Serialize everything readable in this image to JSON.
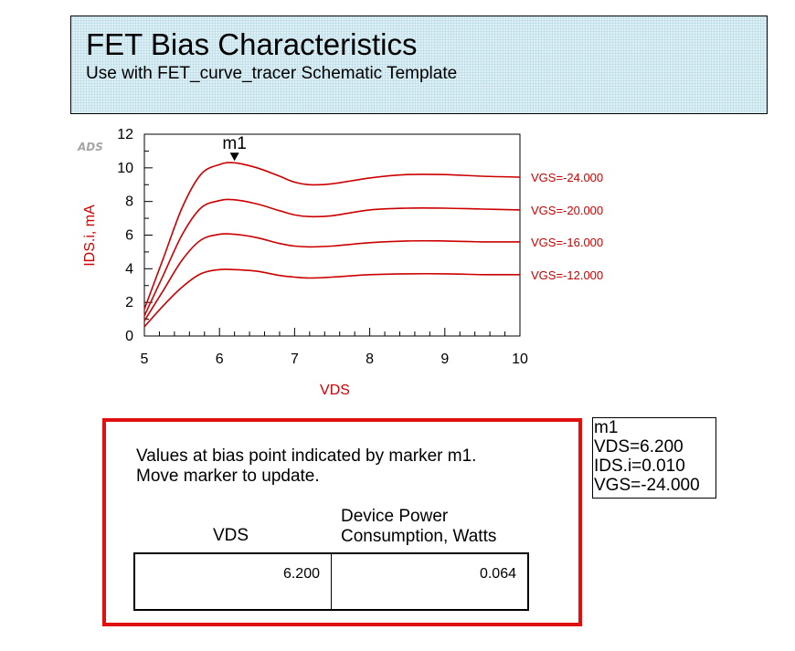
{
  "header": {
    "title": "FET Bias Characteristics",
    "subtitle": "Use with FET_curve_tracer Schematic Template"
  },
  "chart_data": {
    "type": "line",
    "badge": "ADS",
    "xlabel": "VDS",
    "ylabel": "IDS.i, mA",
    "xlim": [
      5,
      10
    ],
    "ylim": [
      0,
      12
    ],
    "xticks": [
      5,
      6,
      7,
      8,
      9,
      10
    ],
    "yticks": [
      0,
      2,
      4,
      6,
      8,
      10,
      12
    ],
    "color": "#cc0000",
    "series": [
      {
        "name": "VGS=-24.000",
        "x": [
          5.0,
          5.25,
          5.5,
          5.75,
          6.0,
          6.2,
          6.5,
          6.8,
          7.0,
          7.2,
          7.5,
          8.0,
          8.5,
          9.0,
          9.5,
          10.0
        ],
        "y": [
          1.6,
          4.6,
          7.6,
          9.6,
          10.2,
          10.3,
          10.0,
          9.5,
          9.15,
          9.0,
          9.05,
          9.4,
          9.6,
          9.6,
          9.5,
          9.45
        ]
      },
      {
        "name": "VGS=-20.000",
        "x": [
          5.0,
          5.25,
          5.5,
          5.75,
          6.0,
          6.2,
          6.5,
          6.8,
          7.0,
          7.2,
          7.5,
          8.0,
          8.5,
          9.0,
          9.5,
          10.0
        ],
        "y": [
          1.2,
          3.6,
          6.0,
          7.6,
          8.05,
          8.1,
          7.85,
          7.45,
          7.2,
          7.1,
          7.15,
          7.5,
          7.6,
          7.6,
          7.55,
          7.5
        ]
      },
      {
        "name": "VGS=-16.000",
        "x": [
          5.0,
          5.25,
          5.5,
          5.75,
          6.0,
          6.2,
          6.5,
          6.8,
          7.0,
          7.2,
          7.5,
          8.0,
          8.5,
          9.0,
          9.5,
          10.0
        ],
        "y": [
          0.9,
          2.7,
          4.5,
          5.7,
          6.05,
          6.05,
          5.85,
          5.5,
          5.35,
          5.3,
          5.35,
          5.55,
          5.65,
          5.65,
          5.6,
          5.6
        ]
      },
      {
        "name": "VGS=-12.000",
        "x": [
          5.0,
          5.25,
          5.5,
          5.75,
          6.0,
          6.2,
          6.5,
          6.8,
          7.0,
          7.2,
          7.5,
          8.0,
          8.5,
          9.0,
          9.5,
          10.0
        ],
        "y": [
          0.55,
          1.8,
          2.9,
          3.7,
          3.95,
          3.95,
          3.85,
          3.6,
          3.5,
          3.45,
          3.5,
          3.65,
          3.7,
          3.7,
          3.65,
          3.65
        ]
      }
    ],
    "marker": {
      "label": "m1",
      "x": 6.2,
      "y": 10.25
    }
  },
  "marker_readout": {
    "name": "m1",
    "vds": "VDS=6.200",
    "ids": "IDS.i=0.010",
    "vgs": "VGS=-24.000"
  },
  "info": {
    "line1": "Values at bias point indicated by marker m1.",
    "line2": "Move marker to update.",
    "col_vds": "VDS",
    "col_power_line1": "Device Power",
    "col_power_line2": "Consumption, Watts",
    "vds_value": "6.200",
    "power_value": "0.064",
    "border_color": "#e01010"
  }
}
